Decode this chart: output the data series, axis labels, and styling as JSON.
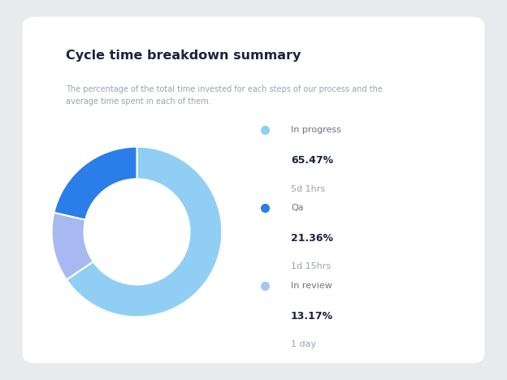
{
  "title": "Cycle time breakdown summary",
  "subtitle": "The percentage of the total time invested for each steps of our process and the\naverage time spent in each of them.",
  "title_color": "#1a2340",
  "subtitle_color": "#9ba3af",
  "background_color": "#e8eaed",
  "card_color": "#ffffff",
  "slices": [
    65.47,
    13.17,
    21.36
  ],
  "slice_colors": [
    "#90cef4",
    "#a8b8f0",
    "#2b7de9"
  ],
  "legend_labels": [
    "In progress",
    "Qa",
    "In review"
  ],
  "legend_pcts": [
    "65.47%",
    "21.36%",
    "13.17%"
  ],
  "legend_times": [
    "5d 1hrs",
    "1d 15hrs",
    "1 day"
  ],
  "legend_dot_colors": [
    "#90cef4",
    "#2b7de9",
    "#a8c4f5"
  ],
  "donut_width": 0.38
}
